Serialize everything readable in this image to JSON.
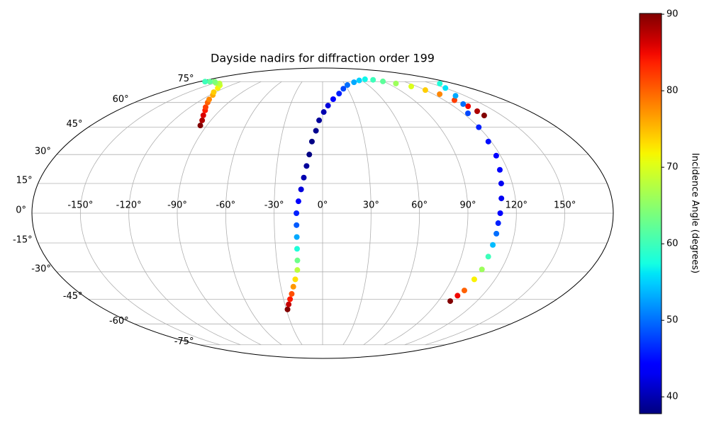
{
  "chart_data": {
    "type": "scatter",
    "projection": "mollweide",
    "title": "Dayside nadirs for diffraction order 199",
    "colorbar_label": "Incidence Angle (degrees)",
    "colormap": "jet",
    "clim": [
      37.8,
      90.1
    ],
    "cticks": [
      40,
      50,
      60,
      70,
      80,
      90
    ],
    "grid": true,
    "xticks": [
      {
        "value": -150,
        "label": "-150°"
      },
      {
        "value": -120,
        "label": "-120°"
      },
      {
        "value": -90,
        "label": "-90°"
      },
      {
        "value": -60,
        "label": "-60°"
      },
      {
        "value": -30,
        "label": "-30°"
      },
      {
        "value": 0,
        "label": "0°"
      },
      {
        "value": 30,
        "label": "30°"
      },
      {
        "value": 60,
        "label": "60°"
      },
      {
        "value": 90,
        "label": "90°"
      },
      {
        "value": 120,
        "label": "120°"
      },
      {
        "value": 150,
        "label": "150°"
      }
    ],
    "yticks": [
      {
        "value": -75,
        "label": "-75°"
      },
      {
        "value": -60,
        "label": "-60°"
      },
      {
        "value": -45,
        "label": "-45°"
      },
      {
        "value": -30,
        "label": "-30°"
      },
      {
        "value": -15,
        "label": "-15°"
      },
      {
        "value": 0,
        "label": "0°"
      },
      {
        "value": 15,
        "label": "15°"
      },
      {
        "value": 30,
        "label": "30°"
      },
      {
        "value": 45,
        "label": "45°"
      },
      {
        "value": 60,
        "label": "60°"
      },
      {
        "value": 75,
        "label": "75°"
      }
    ],
    "x": [
      -95,
      -97,
      -100,
      -103,
      -106,
      -110,
      -113,
      -117,
      -122,
      -128,
      -134,
      -142,
      -150,
      -158,
      -165,
      -172,
      -29,
      -27,
      -25,
      -23,
      -21,
      -19,
      -17,
      -16.5,
      -16.3,
      -16.2,
      -16.2,
      -16.2,
      -15,
      -13.5,
      -12,
      -10.5,
      -9,
      -7.6,
      -5,
      -2.8,
      1,
      5,
      10.6,
      18,
      25,
      32.7,
      45,
      56,
      68,
      79,
      89,
      101,
      112.5,
      120,
      126.6,
      130,
      133.2,
      134.5,
      135.3,
      160.8,
      150,
      140,
      132,
      124,
      120,
      118,
      117.1,
      115,
      113,
      111.3,
      110,
      109,
      108.7,
      108,
      107.5,
      107,
      105.5,
      103.7,
      101.5,
      99.3
    ],
    "y": [
      46,
      49,
      52,
      55,
      57,
      60,
      62,
      65,
      67,
      70,
      72,
      73.5,
      74,
      75,
      75,
      75,
      -51,
      -48,
      -45,
      -42,
      -38,
      -34,
      -29,
      -24,
      -18,
      -12,
      -6,
      0,
      6,
      12,
      18,
      24,
      30,
      37,
      43,
      49,
      54,
      58,
      62.2,
      66,
      69.5,
      72.3,
      74.5,
      76,
      77,
      76.5,
      75.2,
      73.5,
      71.2,
      68.5,
      65.6,
      61.5,
      57.6,
      54.5,
      51.9,
      73.4,
      70,
      64.5,
      59,
      53.2,
      45,
      37,
      29.4,
      22,
      15,
      7.45,
      0,
      -5,
      -10.3,
      -16,
      -22,
      -28.7,
      -34,
      -40.1,
      -43,
      -46.1
    ],
    "values": [
      90,
      88,
      86,
      84,
      82,
      80,
      78,
      76,
      74,
      72,
      70,
      68,
      66,
      64,
      62,
      60,
      90,
      87,
      84,
      81,
      77,
      73,
      68,
      63,
      58,
      53,
      49,
      46,
      44,
      42,
      40,
      39,
      38,
      38,
      38.5,
      39,
      40,
      42,
      44,
      46,
      48,
      50,
      53,
      55,
      57,
      60,
      62,
      66,
      70,
      74,
      78,
      82,
      85,
      88,
      90,
      58,
      56,
      53,
      50,
      48,
      46,
      45,
      44,
      43.5,
      43,
      43,
      44,
      46,
      50,
      54,
      60,
      66,
      72,
      80,
      85,
      90
    ]
  }
}
